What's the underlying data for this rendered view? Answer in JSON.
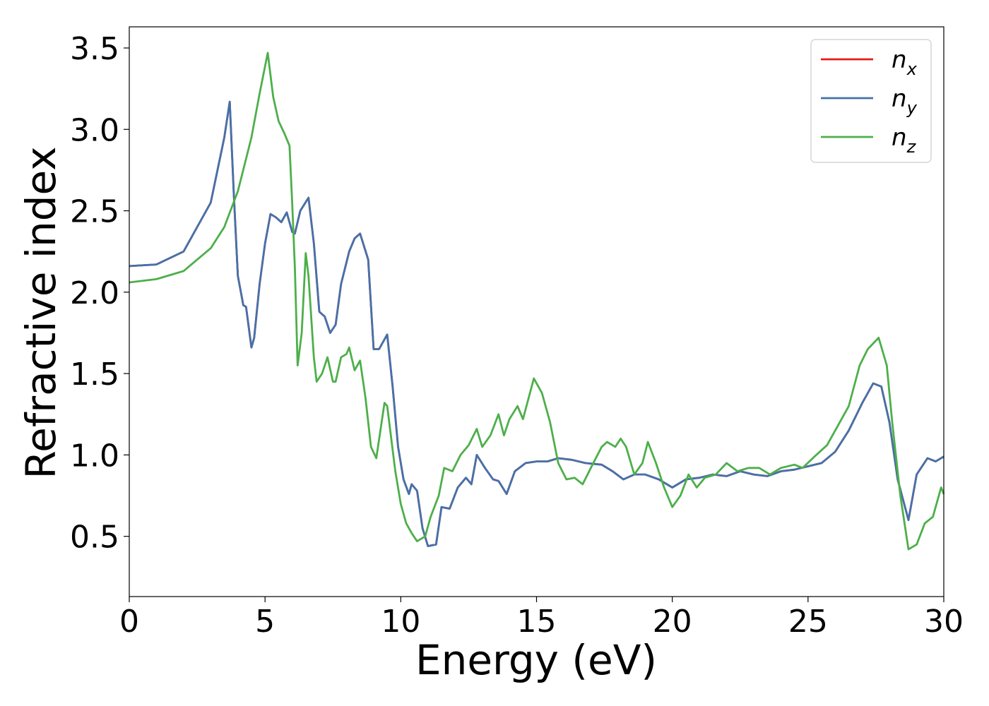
{
  "chart_data": {
    "type": "line",
    "xlabel": "Energy (eV)",
    "ylabel": "Refractive index",
    "xlim": [
      0,
      30
    ],
    "ylim": [
      0.13,
      3.63
    ],
    "xticks": [
      0,
      5,
      10,
      15,
      20,
      25,
      30
    ],
    "yticks": [
      0.5,
      1.0,
      1.5,
      2.0,
      2.5,
      3.0,
      3.5
    ],
    "xtick_labels": [
      "0",
      "5",
      "10",
      "15",
      "20",
      "25",
      "30"
    ],
    "ytick_labels": [
      "0.5",
      "1.0",
      "1.5",
      "2.0",
      "2.5",
      "3.0",
      "3.5"
    ],
    "grid": false,
    "legend_position": "top-right",
    "series": [
      {
        "name": "n_x",
        "label_main": "n",
        "label_sub": "x",
        "color": "#e41a1c",
        "points": [
          [
            0,
            2.16
          ],
          [
            1,
            2.17
          ],
          [
            2,
            2.25
          ],
          [
            3,
            2.55
          ],
          [
            3.5,
            2.95
          ],
          [
            3.7,
            3.17
          ],
          [
            3.85,
            2.6
          ],
          [
            4.0,
            2.1
          ],
          [
            4.2,
            1.92
          ],
          [
            4.3,
            1.91
          ],
          [
            4.5,
            1.66
          ],
          [
            4.6,
            1.72
          ],
          [
            4.8,
            2.05
          ],
          [
            5.0,
            2.3
          ],
          [
            5.2,
            2.48
          ],
          [
            5.4,
            2.46
          ],
          [
            5.6,
            2.43
          ],
          [
            5.8,
            2.49
          ],
          [
            6.0,
            2.37
          ],
          [
            6.1,
            2.36
          ],
          [
            6.3,
            2.5
          ],
          [
            6.6,
            2.58
          ],
          [
            6.8,
            2.3
          ],
          [
            7.0,
            1.88
          ],
          [
            7.2,
            1.85
          ],
          [
            7.4,
            1.75
          ],
          [
            7.6,
            1.8
          ],
          [
            7.8,
            2.05
          ],
          [
            8.1,
            2.25
          ],
          [
            8.3,
            2.33
          ],
          [
            8.5,
            2.36
          ],
          [
            8.8,
            2.2
          ],
          [
            9.0,
            1.65
          ],
          [
            9.2,
            1.65
          ],
          [
            9.5,
            1.74
          ],
          [
            9.7,
            1.42
          ],
          [
            9.9,
            1.05
          ],
          [
            10.1,
            0.85
          ],
          [
            10.3,
            0.76
          ],
          [
            10.4,
            0.82
          ],
          [
            10.6,
            0.78
          ],
          [
            10.8,
            0.55
          ],
          [
            11.0,
            0.44
          ],
          [
            11.3,
            0.45
          ],
          [
            11.5,
            0.68
          ],
          [
            11.8,
            0.67
          ],
          [
            12.1,
            0.8
          ],
          [
            12.4,
            0.86
          ],
          [
            12.6,
            0.82
          ],
          [
            12.8,
            1.0
          ],
          [
            13.1,
            0.92
          ],
          [
            13.4,
            0.85
          ],
          [
            13.6,
            0.84
          ],
          [
            13.9,
            0.76
          ],
          [
            14.2,
            0.9
          ],
          [
            14.6,
            0.95
          ],
          [
            15.0,
            0.96
          ],
          [
            15.4,
            0.96
          ],
          [
            15.8,
            0.98
          ],
          [
            16.3,
            0.97
          ],
          [
            16.8,
            0.95
          ],
          [
            17.4,
            0.94
          ],
          [
            17.8,
            0.9
          ],
          [
            18.2,
            0.85
          ],
          [
            18.6,
            0.88
          ],
          [
            19.0,
            0.88
          ],
          [
            19.5,
            0.85
          ],
          [
            20.0,
            0.8
          ],
          [
            20.5,
            0.85
          ],
          [
            21.0,
            0.86
          ],
          [
            21.5,
            0.88
          ],
          [
            22.0,
            0.87
          ],
          [
            22.5,
            0.9
          ],
          [
            23.0,
            0.88
          ],
          [
            23.5,
            0.87
          ],
          [
            24.0,
            0.9
          ],
          [
            24.5,
            0.91
          ],
          [
            25.0,
            0.93
          ],
          [
            25.5,
            0.95
          ],
          [
            26.0,
            1.02
          ],
          [
            26.5,
            1.15
          ],
          [
            27.0,
            1.32
          ],
          [
            27.4,
            1.44
          ],
          [
            27.7,
            1.42
          ],
          [
            28.0,
            1.2
          ],
          [
            28.3,
            0.85
          ],
          [
            28.7,
            0.6
          ],
          [
            29.0,
            0.88
          ],
          [
            29.4,
            0.98
          ],
          [
            29.7,
            0.96
          ],
          [
            30.0,
            0.99
          ]
        ]
      },
      {
        "name": "n_y",
        "label_main": "n",
        "label_sub": "y",
        "color": "#4472aa",
        "points": [
          [
            0,
            2.16
          ],
          [
            1,
            2.17
          ],
          [
            2,
            2.25
          ],
          [
            3,
            2.55
          ],
          [
            3.5,
            2.95
          ],
          [
            3.7,
            3.17
          ],
          [
            3.85,
            2.6
          ],
          [
            4.0,
            2.1
          ],
          [
            4.2,
            1.92
          ],
          [
            4.3,
            1.91
          ],
          [
            4.5,
            1.66
          ],
          [
            4.6,
            1.72
          ],
          [
            4.8,
            2.05
          ],
          [
            5.0,
            2.3
          ],
          [
            5.2,
            2.48
          ],
          [
            5.4,
            2.46
          ],
          [
            5.6,
            2.43
          ],
          [
            5.8,
            2.49
          ],
          [
            6.0,
            2.37
          ],
          [
            6.1,
            2.36
          ],
          [
            6.3,
            2.5
          ],
          [
            6.6,
            2.58
          ],
          [
            6.8,
            2.3
          ],
          [
            7.0,
            1.88
          ],
          [
            7.2,
            1.85
          ],
          [
            7.4,
            1.75
          ],
          [
            7.6,
            1.8
          ],
          [
            7.8,
            2.05
          ],
          [
            8.1,
            2.25
          ],
          [
            8.3,
            2.33
          ],
          [
            8.5,
            2.36
          ],
          [
            8.8,
            2.2
          ],
          [
            9.0,
            1.65
          ],
          [
            9.2,
            1.65
          ],
          [
            9.5,
            1.74
          ],
          [
            9.7,
            1.42
          ],
          [
            9.9,
            1.05
          ],
          [
            10.1,
            0.85
          ],
          [
            10.3,
            0.76
          ],
          [
            10.4,
            0.82
          ],
          [
            10.6,
            0.78
          ],
          [
            10.8,
            0.55
          ],
          [
            11.0,
            0.44
          ],
          [
            11.3,
            0.45
          ],
          [
            11.5,
            0.68
          ],
          [
            11.8,
            0.67
          ],
          [
            12.1,
            0.8
          ],
          [
            12.4,
            0.86
          ],
          [
            12.6,
            0.82
          ],
          [
            12.8,
            1.0
          ],
          [
            13.1,
            0.92
          ],
          [
            13.4,
            0.85
          ],
          [
            13.6,
            0.84
          ],
          [
            13.9,
            0.76
          ],
          [
            14.2,
            0.9
          ],
          [
            14.6,
            0.95
          ],
          [
            15.0,
            0.96
          ],
          [
            15.4,
            0.96
          ],
          [
            15.8,
            0.98
          ],
          [
            16.3,
            0.97
          ],
          [
            16.8,
            0.95
          ],
          [
            17.4,
            0.94
          ],
          [
            17.8,
            0.9
          ],
          [
            18.2,
            0.85
          ],
          [
            18.6,
            0.88
          ],
          [
            19.0,
            0.88
          ],
          [
            19.5,
            0.85
          ],
          [
            20.0,
            0.8
          ],
          [
            20.5,
            0.85
          ],
          [
            21.0,
            0.86
          ],
          [
            21.5,
            0.88
          ],
          [
            22.0,
            0.87
          ],
          [
            22.5,
            0.9
          ],
          [
            23.0,
            0.88
          ],
          [
            23.5,
            0.87
          ],
          [
            24.0,
            0.9
          ],
          [
            24.5,
            0.91
          ],
          [
            25.0,
            0.93
          ],
          [
            25.5,
            0.95
          ],
          [
            26.0,
            1.02
          ],
          [
            26.5,
            1.15
          ],
          [
            27.0,
            1.32
          ],
          [
            27.4,
            1.44
          ],
          [
            27.7,
            1.42
          ],
          [
            28.0,
            1.2
          ],
          [
            28.3,
            0.85
          ],
          [
            28.7,
            0.6
          ],
          [
            29.0,
            0.88
          ],
          [
            29.4,
            0.98
          ],
          [
            29.7,
            0.96
          ],
          [
            30.0,
            0.99
          ]
        ]
      },
      {
        "name": "n_z",
        "label_main": "n",
        "label_sub": "z",
        "color": "#4daf4a",
        "points": [
          [
            0,
            2.06
          ],
          [
            1,
            2.08
          ],
          [
            2,
            2.13
          ],
          [
            3,
            2.27
          ],
          [
            3.5,
            2.4
          ],
          [
            4.0,
            2.62
          ],
          [
            4.5,
            2.95
          ],
          [
            4.8,
            3.22
          ],
          [
            5.1,
            3.47
          ],
          [
            5.3,
            3.2
          ],
          [
            5.5,
            3.05
          ],
          [
            5.7,
            2.98
          ],
          [
            5.9,
            2.9
          ],
          [
            6.0,
            2.55
          ],
          [
            6.1,
            2.15
          ],
          [
            6.2,
            1.55
          ],
          [
            6.35,
            1.75
          ],
          [
            6.5,
            2.24
          ],
          [
            6.6,
            2.1
          ],
          [
            6.8,
            1.6
          ],
          [
            6.9,
            1.45
          ],
          [
            7.1,
            1.5
          ],
          [
            7.3,
            1.6
          ],
          [
            7.5,
            1.45
          ],
          [
            7.6,
            1.45
          ],
          [
            7.8,
            1.6
          ],
          [
            8.0,
            1.62
          ],
          [
            8.1,
            1.66
          ],
          [
            8.3,
            1.52
          ],
          [
            8.5,
            1.58
          ],
          [
            8.7,
            1.35
          ],
          [
            8.9,
            1.05
          ],
          [
            9.1,
            0.98
          ],
          [
            9.4,
            1.32
          ],
          [
            9.5,
            1.3
          ],
          [
            9.8,
            0.9
          ],
          [
            10.0,
            0.7
          ],
          [
            10.2,
            0.58
          ],
          [
            10.4,
            0.52
          ],
          [
            10.6,
            0.47
          ],
          [
            10.9,
            0.5
          ],
          [
            11.1,
            0.62
          ],
          [
            11.4,
            0.75
          ],
          [
            11.6,
            0.92
          ],
          [
            11.9,
            0.9
          ],
          [
            12.2,
            1.0
          ],
          [
            12.5,
            1.06
          ],
          [
            12.8,
            1.16
          ],
          [
            13.0,
            1.05
          ],
          [
            13.3,
            1.12
          ],
          [
            13.6,
            1.25
          ],
          [
            13.8,
            1.12
          ],
          [
            14.0,
            1.22
          ],
          [
            14.3,
            1.3
          ],
          [
            14.5,
            1.22
          ],
          [
            14.9,
            1.47
          ],
          [
            15.2,
            1.38
          ],
          [
            15.5,
            1.2
          ],
          [
            15.8,
            0.95
          ],
          [
            16.1,
            0.85
          ],
          [
            16.4,
            0.86
          ],
          [
            16.7,
            0.82
          ],
          [
            17.0,
            0.92
          ],
          [
            17.4,
            1.05
          ],
          [
            17.6,
            1.08
          ],
          [
            17.9,
            1.05
          ],
          [
            18.1,
            1.1
          ],
          [
            18.3,
            1.05
          ],
          [
            18.6,
            0.88
          ],
          [
            18.9,
            0.95
          ],
          [
            19.1,
            1.08
          ],
          [
            19.4,
            0.95
          ],
          [
            19.7,
            0.8
          ],
          [
            20.0,
            0.68
          ],
          [
            20.3,
            0.75
          ],
          [
            20.6,
            0.88
          ],
          [
            20.9,
            0.8
          ],
          [
            21.2,
            0.86
          ],
          [
            21.6,
            0.88
          ],
          [
            22.0,
            0.95
          ],
          [
            22.4,
            0.9
          ],
          [
            22.8,
            0.92
          ],
          [
            23.2,
            0.92
          ],
          [
            23.6,
            0.88
          ],
          [
            24.0,
            0.92
          ],
          [
            24.5,
            0.94
          ],
          [
            24.8,
            0.92
          ],
          [
            25.3,
            1.0
          ],
          [
            25.7,
            1.06
          ],
          [
            26.1,
            1.18
          ],
          [
            26.5,
            1.3
          ],
          [
            26.9,
            1.55
          ],
          [
            27.2,
            1.65
          ],
          [
            27.6,
            1.72
          ],
          [
            27.9,
            1.55
          ],
          [
            28.1,
            1.2
          ],
          [
            28.4,
            0.75
          ],
          [
            28.7,
            0.42
          ],
          [
            29.0,
            0.45
          ],
          [
            29.3,
            0.58
          ],
          [
            29.6,
            0.62
          ],
          [
            29.9,
            0.8
          ],
          [
            30.0,
            0.76
          ]
        ]
      }
    ]
  }
}
